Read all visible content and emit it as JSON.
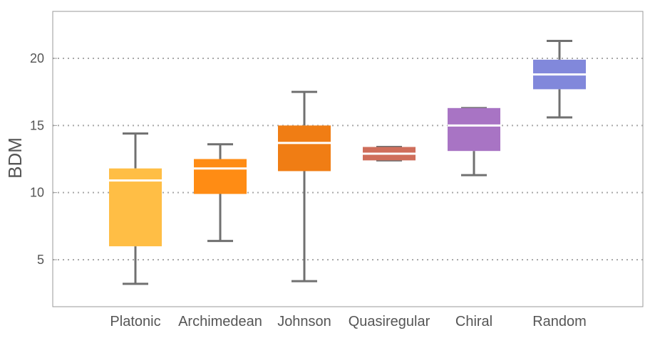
{
  "chart_data": {
    "type": "boxplot",
    "title": "",
    "xlabel": "",
    "ylabel": "BDM",
    "ylim": [
      1.5,
      23.5
    ],
    "yticks": [
      5,
      10,
      15,
      20
    ],
    "grid": "horizontal dotted at major ticks",
    "categories": [
      "Platonic",
      "Archimedean",
      "Johnson",
      "Quasiregular",
      "Chiral",
      "Random"
    ],
    "series": [
      {
        "name": "Platonic",
        "min": 3.2,
        "q1": 6.0,
        "median": 10.9,
        "q3": 11.8,
        "max": 14.4,
        "color": "#FFBE45"
      },
      {
        "name": "Archimedean",
        "min": 6.4,
        "q1": 9.9,
        "median": 11.8,
        "q3": 12.5,
        "max": 13.6,
        "color": "#FF8C14"
      },
      {
        "name": "Johnson",
        "min": 3.4,
        "q1": 11.6,
        "median": 13.7,
        "q3": 15.0,
        "max": 17.5,
        "color": "#F07D14"
      },
      {
        "name": "Quasiregular",
        "min": 12.4,
        "q1": 12.4,
        "median": 12.9,
        "q3": 13.4,
        "max": 13.4,
        "color": "#CF6E5B"
      },
      {
        "name": "Chiral",
        "min": 11.3,
        "q1": 13.1,
        "median": 15.0,
        "q3": 16.3,
        "max": 16.3,
        "color": "#A874C4"
      },
      {
        "name": "Random",
        "min": 15.6,
        "q1": 17.7,
        "median": 18.8,
        "q3": 19.9,
        "max": 21.3,
        "color": "#8188DB"
      }
    ]
  }
}
